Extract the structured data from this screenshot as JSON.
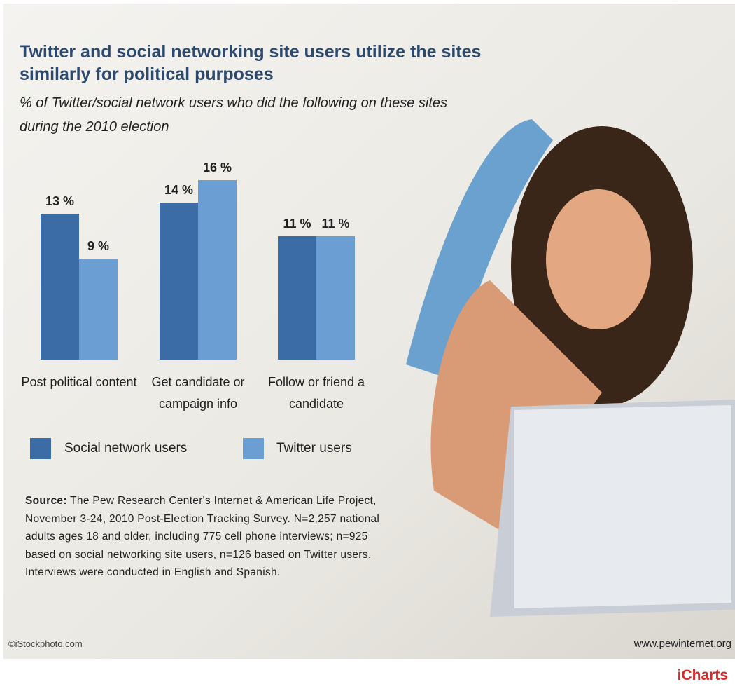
{
  "chart_data": {
    "type": "bar",
    "title": "Twitter and social networking site users utilize the sites similarly for political purposes",
    "subtitle": "% of Twitter/social network users who did the following on these sites during the 2010 election",
    "categories": [
      "Post political content",
      "Get candidate or campaign info",
      "Follow or friend a candidate"
    ],
    "series": [
      {
        "name": "Social network users",
        "color": "#3c6ca6",
        "values": [
          13,
          14,
          11
        ],
        "value_labels": [
          "13 %",
          "14 %",
          "11 %"
        ]
      },
      {
        "name": "Twitter users",
        "color": "#6b9fd4",
        "values": [
          9,
          16,
          11
        ],
        "value_labels": [
          "9 %",
          "16 %",
          "11 %"
        ]
      }
    ],
    "source_label": "Source:",
    "source": "The Pew Research Center's Internet & American Life Project, November 3-24, 2010 Post-Election Tracking Survey. N=2,257 national adults ages 18 and older, including 775 cell phone interviews; n=925 based on social networking site users, n=126 based on Twitter users. Interviews were conducted in English and Spanish.",
    "photo_credit": "©iStockphoto.com",
    "website": "www.pewinternet.org",
    "brand": "iCharts"
  }
}
